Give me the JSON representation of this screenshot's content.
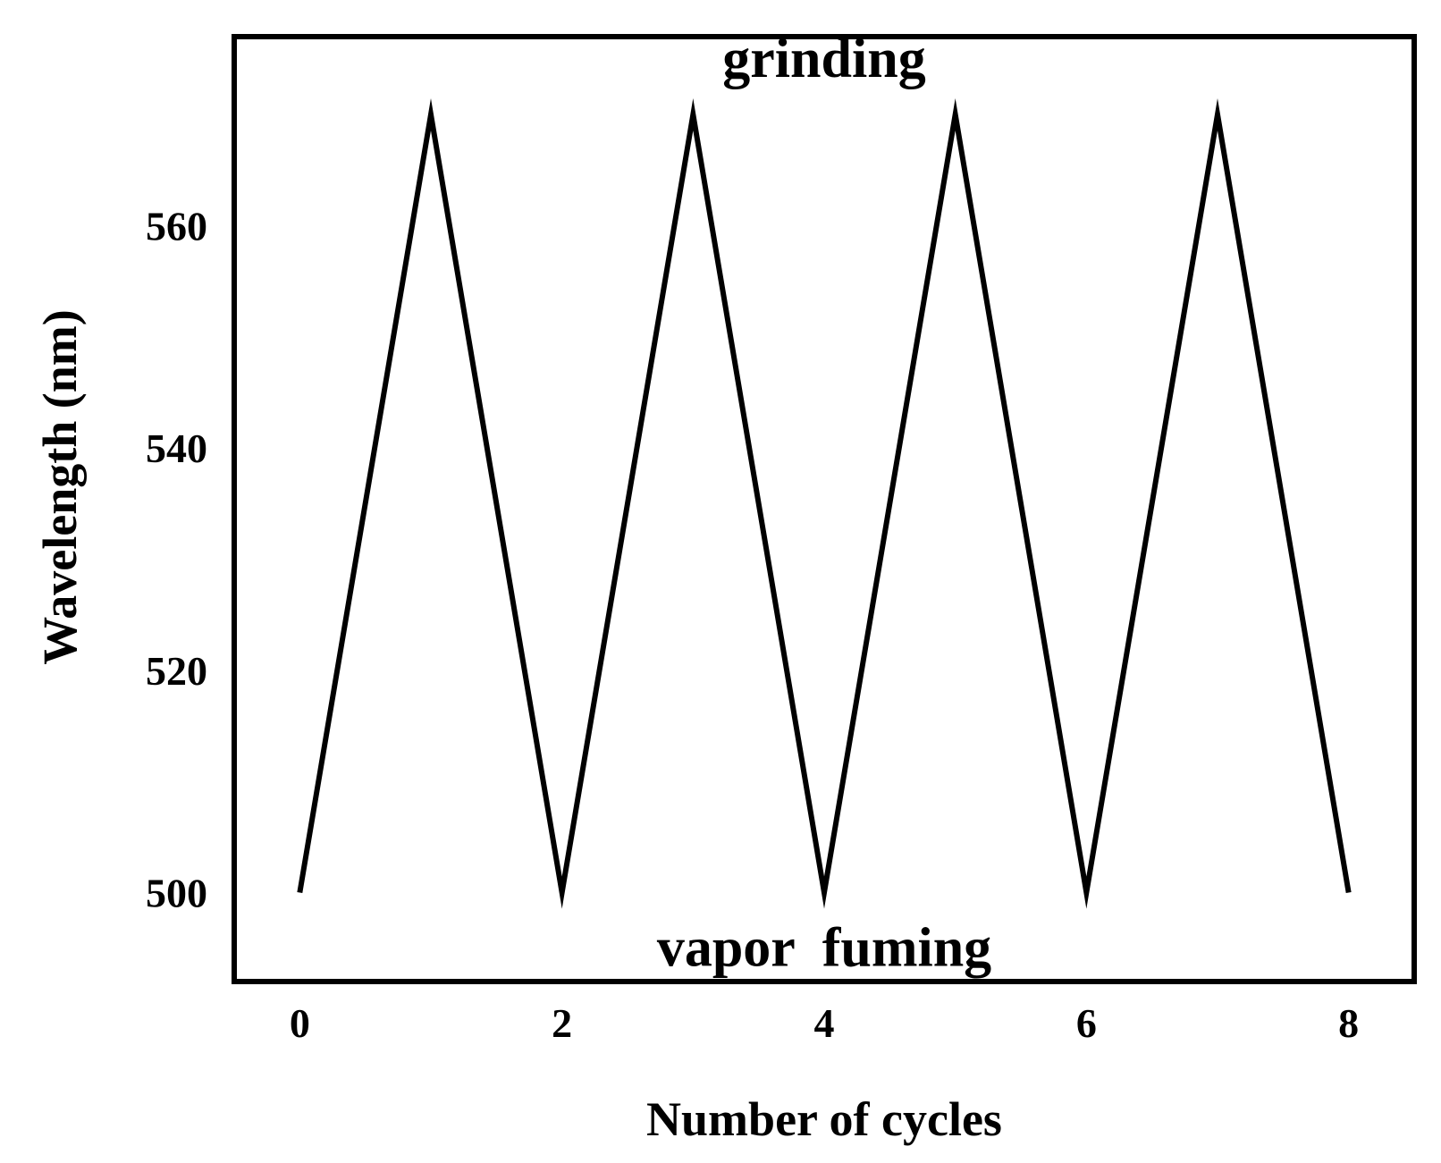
{
  "chart_data": {
    "type": "line",
    "title": "",
    "xlabel": "Number of cycles",
    "ylabel": "Wavelength (nm)",
    "xlim": [
      -0.5,
      8.5
    ],
    "ylim": [
      492,
      577
    ],
    "x_ticks": [
      0,
      2,
      4,
      6,
      8
    ],
    "y_ticks": [
      500,
      520,
      540,
      560
    ],
    "x_tick_labels": [
      "0",
      "2",
      "4",
      "6",
      "8"
    ],
    "y_tick_labels": [
      "500",
      "520",
      "540",
      "560"
    ],
    "grid": false,
    "legend": "none",
    "series": [
      {
        "x": [
          0,
          1,
          2,
          3,
          4,
          5,
          6,
          7,
          8
        ],
        "y": [
          500,
          570,
          500,
          570,
          500,
          570,
          500,
          570,
          500
        ],
        "color": "#000000"
      }
    ],
    "annotations": [
      {
        "text": "grinding",
        "x": 4,
        "y": 575
      },
      {
        "text": "vapor  fuming",
        "x": 4,
        "y": 495
      }
    ]
  }
}
